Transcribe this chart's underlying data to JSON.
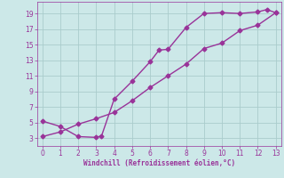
{
  "title": "",
  "xlabel": "Windchill (Refroidissement éolien,°C)",
  "line1_x": [
    0,
    1,
    2,
    3,
    3.3,
    4,
    5,
    6,
    6.5,
    7,
    8,
    9,
    10,
    11,
    12,
    12.5,
    13
  ],
  "line1_y": [
    5.2,
    4.5,
    3.2,
    3.1,
    3.3,
    8.0,
    10.3,
    12.8,
    14.3,
    14.4,
    17.2,
    19.0,
    19.1,
    19.0,
    19.2,
    19.5,
    19.1
  ],
  "line2_x": [
    0,
    1,
    2,
    3,
    4,
    5,
    6,
    7,
    8,
    9,
    10,
    11,
    12,
    13
  ],
  "line2_y": [
    3.2,
    3.8,
    4.8,
    5.5,
    6.3,
    7.8,
    9.5,
    11.0,
    12.5,
    14.5,
    15.2,
    16.8,
    17.5,
    19.1
  ],
  "line_color": "#993399",
  "bg_color": "#cce8e8",
  "grid_color": "#aacccc",
  "tick_color": "#993399",
  "label_color": "#993399",
  "xlim": [
    -0.3,
    13.3
  ],
  "ylim": [
    2.0,
    20.5
  ],
  "xticks": [
    0,
    1,
    2,
    3,
    4,
    5,
    6,
    7,
    8,
    9,
    10,
    11,
    12,
    13
  ],
  "yticks": [
    3,
    5,
    7,
    9,
    11,
    13,
    15,
    17,
    19
  ],
  "marker": "D",
  "marker_size": 2.5,
  "linewidth": 1.0
}
